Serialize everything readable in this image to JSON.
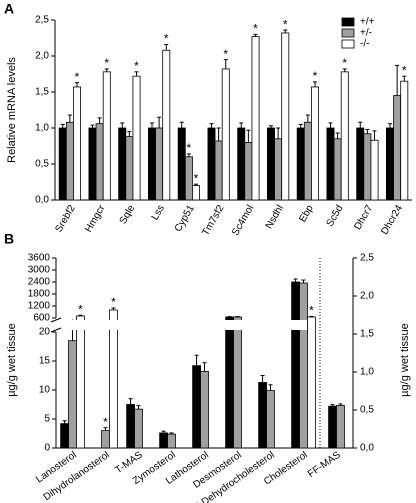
{
  "chart_data": [
    {
      "type": "bar",
      "panel": "A",
      "ylabel": "Relative mRNA levels",
      "categories": [
        "Srebf2",
        "Hmgcr",
        "Sqle",
        "Lss",
        "Cyp51",
        "Tm7sf2",
        "Sc4mol",
        "Nsdhl",
        "Ebp",
        "Sc5d",
        "Dhcr7",
        "Dhcr24"
      ],
      "series": [
        {
          "name": "+/+",
          "color": "#000000",
          "values": [
            1.0,
            1.0,
            1.0,
            1.0,
            1.0,
            1.0,
            1.0,
            1.0,
            1.0,
            1.0,
            1.0,
            1.0
          ],
          "errors": [
            0.05,
            0.04,
            0.07,
            0.07,
            0.08,
            0.06,
            0.07,
            0.03,
            0.05,
            0.07,
            0.08,
            0.06
          ]
        },
        {
          "name": "+/-",
          "color": "#a0a0a0",
          "values": [
            1.08,
            1.06,
            0.88,
            1.0,
            0.6,
            0.82,
            0.8,
            0.85,
            1.08,
            0.85,
            0.92,
            1.45
          ],
          "errors": [
            0.1,
            0.08,
            0.07,
            0.15,
            0.04,
            0.18,
            0.17,
            0.15,
            0.1,
            0.08,
            0.06,
            0.42
          ],
          "significance": [
            null,
            null,
            null,
            null,
            "*",
            null,
            null,
            null,
            null,
            null,
            null,
            null
          ]
        },
        {
          "name": "-/-",
          "color": "#ffffff",
          "values": [
            1.57,
            1.78,
            1.72,
            2.08,
            0.2,
            1.82,
            2.27,
            2.32,
            1.57,
            1.78,
            0.83,
            1.65
          ],
          "errors": [
            0.06,
            0.04,
            0.06,
            0.08,
            0.02,
            0.13,
            0.03,
            0.04,
            0.07,
            0.04,
            0.13,
            0.07
          ],
          "significance": [
            "*",
            "*",
            "*",
            "*",
            "*",
            "*",
            "*",
            "*",
            "*",
            "*",
            null,
            "*"
          ]
        }
      ],
      "ylim": [
        0,
        2.5
      ],
      "yticks": [
        {
          "value": 0,
          "label": "0,0"
        },
        {
          "value": 0.5,
          "label": "0,5"
        },
        {
          "value": 1,
          "label": "1,0"
        },
        {
          "value": 1.5,
          "label": "1,5"
        },
        {
          "value": 2,
          "label": "2,0"
        },
        {
          "value": 2.5,
          "label": "2,5"
        }
      ],
      "legend": "top-right",
      "grid": false
    },
    {
      "type": "bar",
      "panel": "B",
      "ylabel": "µg/g wet tissue",
      "y2label": "µg/g wet tissue",
      "categories": [
        "Lanosterol",
        "Dihydrolanosterol",
        "T-MAS",
        "Zymosterol",
        "Lathosterol",
        "Desmosterol",
        "7-Dehydrocholesterol",
        "Cholesterol",
        "FF-MAS"
      ],
      "series": [
        {
          "color": "#000000",
          "values": [
            4.2,
            null,
            7.5,
            2.6,
            14.2,
            650,
            11.3,
            2400,
            null
          ],
          "errors": [
            0.5,
            null,
            1.0,
            0.3,
            1.8,
            20,
            1.2,
            150,
            null
          ]
        },
        {
          "color": "#a0a0a0",
          "values": [
            18.5,
            3.0,
            6.7,
            2.4,
            13.2,
            650,
            9.9,
            2350,
            null
          ],
          "errors": [
            2.5,
            0.5,
            0.6,
            0.2,
            1.5,
            20,
            1.0,
            150,
            null
          ],
          "significance": [
            "*",
            "*",
            null,
            null,
            null,
            null,
            null,
            null,
            null
          ]
        },
        {
          "color": "#ffffff",
          "values": [
            700,
            1000,
            null,
            null,
            null,
            null,
            null,
            650,
            null
          ],
          "errors": [
            40,
            100,
            null,
            null,
            null,
            null,
            null,
            30,
            null
          ],
          "significance": [
            "*",
            "*",
            null,
            null,
            null,
            null,
            null,
            "*",
            null
          ]
        },
        {
          "color": "#000000",
          "axis": "y2",
          "values": [
            null,
            null,
            null,
            null,
            null,
            null,
            null,
            null,
            0.55
          ],
          "errors": [
            null,
            null,
            null,
            null,
            null,
            null,
            null,
            null,
            0.02
          ]
        },
        {
          "color": "#a0a0a0",
          "axis": "y2",
          "values": [
            null,
            null,
            null,
            null,
            null,
            null,
            null,
            null,
            0.56
          ],
          "errors": [
            null,
            null,
            null,
            null,
            null,
            null,
            null,
            null,
            0.02
          ]
        }
      ],
      "ylim": [
        0,
        3600
      ],
      "axis_break": [
        20,
        600
      ],
      "yticks": [
        0,
        5,
        10,
        15,
        20,
        600,
        1200,
        1800,
        2400,
        3000,
        3600
      ],
      "y2lim": [
        0,
        2.5
      ],
      "y2ticks": [
        {
          "value": 0,
          "label": "0,0"
        },
        {
          "value": 0.5,
          "label": "0,5"
        },
        {
          "value": 1,
          "label": "1,0"
        },
        {
          "value": 1.5,
          "label": "1,5"
        },
        {
          "value": 2,
          "label": "2,0"
        },
        {
          "value": 2.5,
          "label": "2,5"
        }
      ],
      "grid": false
    }
  ]
}
